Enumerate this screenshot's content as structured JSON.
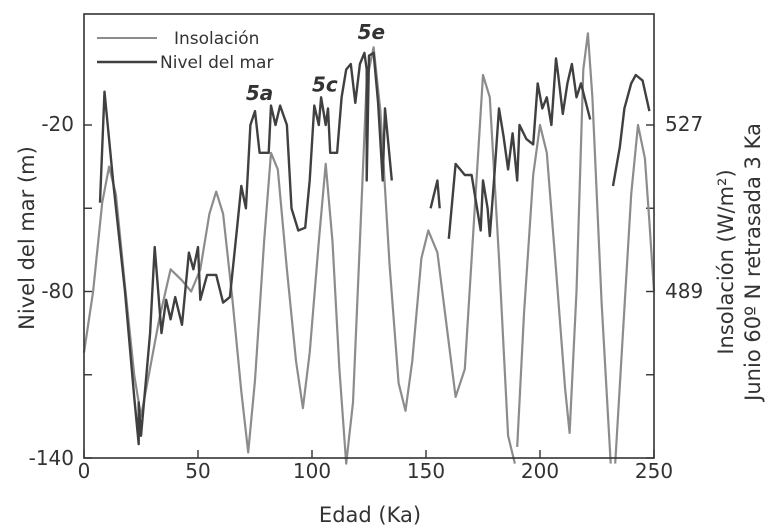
{
  "chart_data": {
    "type": "line",
    "xlabel": "Edad (Ka)",
    "ylabel": "Nivel del mar (m)",
    "y2label_line1": "Insolación (W/m²)",
    "y2label_line2": "Junio 60º N retrasada 3 Ka",
    "xlim": [
      0,
      250
    ],
    "ylim": [
      -140,
      20
    ],
    "xticks": [
      "0",
      "50",
      "100",
      "150",
      "200",
      "250"
    ],
    "yticks": [
      "-20",
      "-80",
      "-140"
    ],
    "y2ticks": [
      "527",
      "489"
    ],
    "legend_position": "top-left",
    "annotations": [
      {
        "text": "5a",
        "x": 71,
        "y": -11
      },
      {
        "text": "5c",
        "x": 100,
        "y": -8
      },
      {
        "text": "5e",
        "x": 120,
        "y": 11
      }
    ],
    "series": [
      {
        "name": "Insolación",
        "color": "#8c8c8c",
        "segments": [
          [
            [
              0,
              -102
            ],
            [
              4,
              -80
            ],
            [
              8,
              -48
            ],
            [
              11,
              -35
            ],
            [
              14,
              -45
            ],
            [
              18,
              -78
            ],
            [
              22,
              -110
            ],
            [
              25,
              -125
            ],
            [
              28,
              -112
            ],
            [
              33,
              -90
            ],
            [
              38,
              -72
            ],
            [
              43,
              -76
            ],
            [
              47,
              -80
            ],
            [
              51,
              -72
            ],
            [
              55,
              -52
            ],
            [
              58,
              -44
            ],
            [
              61,
              -52
            ],
            [
              65,
              -82
            ],
            [
              69,
              -116
            ],
            [
              72,
              -138
            ],
            [
              75,
              -112
            ],
            [
              79,
              -62
            ],
            [
              82,
              -30
            ],
            [
              85,
              -36
            ],
            [
              89,
              -72
            ],
            [
              93,
              -105
            ],
            [
              96,
              -122
            ],
            [
              99,
              -102
            ],
            [
              103,
              -62
            ],
            [
              106,
              -34
            ],
            [
              109,
              -62
            ],
            [
              112,
              -108
            ],
            [
              115,
              -150
            ],
            [
              118,
              -120
            ],
            [
              121,
              -62
            ],
            [
              124,
              -4
            ],
            [
              127,
              8
            ],
            [
              130,
              -15
            ],
            [
              134,
              -70
            ],
            [
              138,
              -113
            ],
            [
              141,
              -123
            ],
            [
              144,
              -105
            ],
            [
              148,
              -68
            ],
            [
              151,
              -58
            ],
            [
              155,
              -66
            ],
            [
              159,
              -92
            ],
            [
              163,
              -118
            ],
            [
              167,
              -108
            ],
            [
              171,
              -55
            ],
            [
              175,
              -2
            ],
            [
              178,
              -10
            ],
            [
              182,
              -68
            ],
            [
              186,
              -132
            ],
            [
              189,
              -150
            ]
          ],
          [
            [
              190,
              -136
            ],
            [
              193,
              -88
            ],
            [
              197,
              -38
            ],
            [
              200,
              -20
            ],
            [
              203,
              -30
            ],
            [
              207,
              -72
            ],
            [
              211,
              -115
            ],
            [
              213,
              -131
            ],
            [
              216,
              -80
            ],
            [
              219,
              0
            ],
            [
              221,
              13
            ],
            [
              223,
              -10
            ],
            [
              227,
              -84
            ],
            [
              231,
              -150
            ]
          ],
          [
            [
              233,
              -142
            ],
            [
              236,
              -100
            ],
            [
              240,
              -45
            ],
            [
              243,
              -20
            ],
            [
              246,
              -32
            ],
            [
              248,
              -55
            ],
            [
              250,
              -80
            ]
          ]
        ]
      },
      {
        "name": "Nivel del mar",
        "color": "#404040",
        "segments": [
          [
            [
              7,
              -48
            ],
            [
              9,
              -8
            ],
            [
              13,
              -42
            ],
            [
              18,
              -80
            ],
            [
              22,
              -118
            ],
            [
              24,
              -135
            ],
            [
              24,
              -120
            ],
            [
              25,
              -132
            ],
            [
              29,
              -95
            ],
            [
              31,
              -64
            ],
            [
              34,
              -95
            ],
            [
              36,
              -83
            ],
            [
              38,
              -90
            ],
            [
              40,
              -82
            ],
            [
              43,
              -92
            ],
            [
              46,
              -66
            ],
            [
              48,
              -72
            ],
            [
              50,
              -64
            ],
            [
              51,
              -83
            ],
            [
              54,
              -74
            ],
            [
              58,
              -74
            ],
            [
              61,
              -84
            ],
            [
              64,
              -82
            ],
            [
              67,
              -58
            ],
            [
              69,
              -42
            ],
            [
              71,
              -50
            ],
            [
              73,
              -20
            ],
            [
              75,
              -15
            ],
            [
              77,
              -30
            ],
            [
              81,
              -30
            ],
            [
              82,
              -13
            ],
            [
              84,
              -20
            ],
            [
              86,
              -13
            ],
            [
              89,
              -20
            ],
            [
              91,
              -50
            ],
            [
              94,
              -58
            ],
            [
              97,
              -57
            ],
            [
              99,
              -40
            ],
            [
              101,
              -13
            ],
            [
              103,
              -20
            ],
            [
              104,
              -10
            ],
            [
              106,
              -20
            ],
            [
              107,
              -14
            ],
            [
              108,
              -30
            ],
            [
              111,
              -30
            ],
            [
              113,
              -10
            ],
            [
              115,
              0
            ],
            [
              117,
              2
            ],
            [
              119,
              -12
            ],
            [
              121,
              2
            ],
            [
              123,
              6
            ],
            [
              124,
              0
            ],
            [
              124,
              -40
            ],
            [
              125,
              5
            ],
            [
              127,
              6
            ],
            [
              129,
              -12
            ],
            [
              131,
              -40
            ],
            [
              132,
              -14
            ],
            [
              135,
              -40
            ]
          ],
          [
            [
              152,
              -50
            ],
            [
              155,
              -40
            ],
            [
              156,
              -50
            ]
          ],
          [
            [
              160,
              -61
            ],
            [
              163,
              -34
            ],
            [
              167,
              -38
            ],
            [
              170,
              -38
            ],
            [
              174,
              -58
            ],
            [
              175,
              -40
            ],
            [
              177,
              -50
            ],
            [
              178,
              -60
            ],
            [
              180,
              -38
            ],
            [
              182,
              -14
            ],
            [
              184,
              -24
            ],
            [
              186,
              -36
            ],
            [
              188,
              -23
            ],
            [
              190,
              -40
            ],
            [
              191,
              -20
            ],
            [
              194,
              -25
            ],
            [
              197,
              -27
            ],
            [
              199,
              -5
            ],
            [
              201,
              -14
            ],
            [
              203,
              -10
            ],
            [
              205,
              -20
            ],
            [
              207,
              4
            ],
            [
              208,
              -2
            ],
            [
              210,
              -16
            ],
            [
              212,
              -5
            ],
            [
              214,
              2
            ],
            [
              216,
              -10
            ],
            [
              218,
              -5
            ],
            [
              222,
              -18
            ]
          ],
          [
            [
              232,
              -42
            ],
            [
              235,
              -28
            ],
            [
              237,
              -14
            ],
            [
              240,
              -5
            ],
            [
              242,
              -2
            ],
            [
              245,
              -4
            ],
            [
              248,
              -15
            ]
          ]
        ]
      }
    ]
  }
}
